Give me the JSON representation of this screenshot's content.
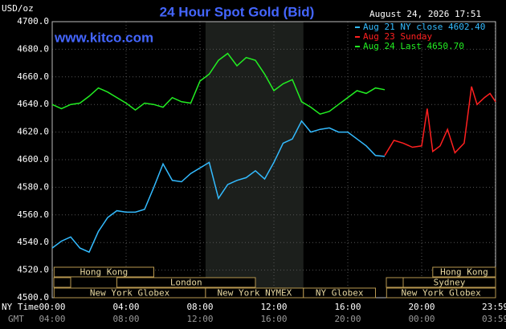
{
  "chart_data": {
    "type": "line",
    "title": "24 Hour Spot Gold (Bid)",
    "y_label": "USD/oz",
    "watermark": "www.kitco.com",
    "timestamp": "August 24, 2026 17:51",
    "x_label": "NY Time",
    "x2_label": "GMT",
    "xlim": [
      0,
      24
    ],
    "ylim": [
      4500,
      4700
    ],
    "grid": true,
    "yticks": [
      {
        "value": 4500,
        "label": "4500.0"
      },
      {
        "value": 4520,
        "label": "4520.0"
      },
      {
        "value": 4540,
        "label": "4540.0"
      },
      {
        "value": 4560,
        "label": "4560.0"
      },
      {
        "value": 4580,
        "label": "4580.0"
      },
      {
        "value": 4600,
        "label": "4600.0"
      },
      {
        "value": 4620,
        "label": "4620.0"
      },
      {
        "value": 4640,
        "label": "4640.0"
      },
      {
        "value": 4660,
        "label": "4660.0"
      },
      {
        "value": 4680,
        "label": "4680.0"
      },
      {
        "value": 4700,
        "label": "4700.0"
      }
    ],
    "xticks": [
      {
        "value": 0,
        "label": "00:00"
      },
      {
        "value": 4,
        "label": "04:00"
      },
      {
        "value": 8,
        "label": "08:00"
      },
      {
        "value": 12,
        "label": "12:00"
      },
      {
        "value": 16,
        "label": "16:00"
      },
      {
        "value": 20,
        "label": "20:00"
      },
      {
        "value": 23.98,
        "label": "23:59"
      }
    ],
    "x2ticks": [
      {
        "value": 0,
        "label": "04:00"
      },
      {
        "value": 4,
        "label": "08:00"
      },
      {
        "value": 8,
        "label": "12:00"
      },
      {
        "value": 12,
        "label": "16:00"
      },
      {
        "value": 16,
        "label": "20:00"
      },
      {
        "value": 20,
        "label": "00:00"
      },
      {
        "value": 23.98,
        "label": "03:59"
      }
    ],
    "series": [
      {
        "name": "Aug 21 NY close 4602.40",
        "color": "#33bbff",
        "x": [
          0,
          0.5,
          1,
          1.5,
          2,
          2.5,
          3,
          3.5,
          4,
          4.5,
          5,
          5.5,
          6,
          6.5,
          7,
          7.5,
          8,
          8.5,
          9,
          9.5,
          10,
          10.5,
          11,
          11.5,
          12,
          12.5,
          13,
          13.5,
          14,
          14.5,
          15,
          15.5,
          16,
          16.5,
          17,
          17.5,
          18
        ],
        "values": [
          4536,
          4541,
          4544,
          4536,
          4533,
          4548,
          4558,
          4563,
          4562,
          4562,
          4564,
          4580,
          4597,
          4585,
          4584,
          4590,
          4594,
          4598,
          4572,
          4582,
          4585,
          4587,
          4592,
          4586,
          4598,
          4612,
          4615,
          4628,
          4620,
          4622,
          4623,
          4620,
          4620,
          4615,
          4610,
          4603,
          4602.4
        ]
      },
      {
        "name": "Aug 23 Sunday",
        "color": "#ff2020",
        "x": [
          18,
          18.5,
          19,
          19.5,
          20,
          20.3,
          20.6,
          21,
          21.4,
          21.8,
          22.3,
          22.7,
          23,
          23.4,
          23.7,
          24
        ],
        "values": [
          4603,
          4614,
          4612,
          4609,
          4610,
          4637,
          4606,
          4610,
          4622,
          4605,
          4612,
          4653,
          4640,
          4645,
          4648,
          4642
        ]
      },
      {
        "name": "Aug 24 Last 4650.70",
        "color": "#22ee22",
        "x": [
          0,
          0.5,
          1,
          1.5,
          2,
          2.5,
          3,
          3.5,
          4,
          4.5,
          5,
          5.5,
          6,
          6.5,
          7,
          7.5,
          8,
          8.5,
          9,
          9.5,
          10,
          10.5,
          11,
          11.5,
          12,
          12.5,
          13,
          13.5,
          14,
          14.5,
          15,
          15.5,
          16,
          16.5,
          17,
          17.5,
          18
        ],
        "values": [
          4640,
          4637,
          4640,
          4641,
          4646,
          4652,
          4649,
          4645,
          4641,
          4636,
          4641,
          4640,
          4638,
          4645,
          4642,
          4641,
          4657,
          4662,
          4672,
          4677,
          4668,
          4674,
          4672,
          4662,
          4650,
          4655,
          4658,
          4642,
          4638,
          4633,
          4635,
          4640,
          4645,
          4650,
          4648,
          4652,
          4650.7
        ]
      }
    ],
    "sessions": [
      [
        {
          "label": "Hong Kong",
          "start": 0.1,
          "end": 5.5
        },
        {
          "label": "Hong Kong",
          "start": 20.6,
          "end": 24
        }
      ],
      [
        {
          "label": "London",
          "start": 3.5,
          "end": 11
        },
        {
          "label": "Sydney",
          "start": 19,
          "end": 24
        }
      ],
      [
        {
          "label": "New York Globex",
          "start": 0.1,
          "end": 8.3
        },
        {
          "label": "New York NYMEX",
          "start": 8.3,
          "end": 13.6,
          "shaded": true
        },
        {
          "label": "NY Globex",
          "start": 13.6,
          "end": 17.5
        },
        {
          "label": "New York Globex",
          "start": 18.1,
          "end": 24
        }
      ]
    ]
  }
}
